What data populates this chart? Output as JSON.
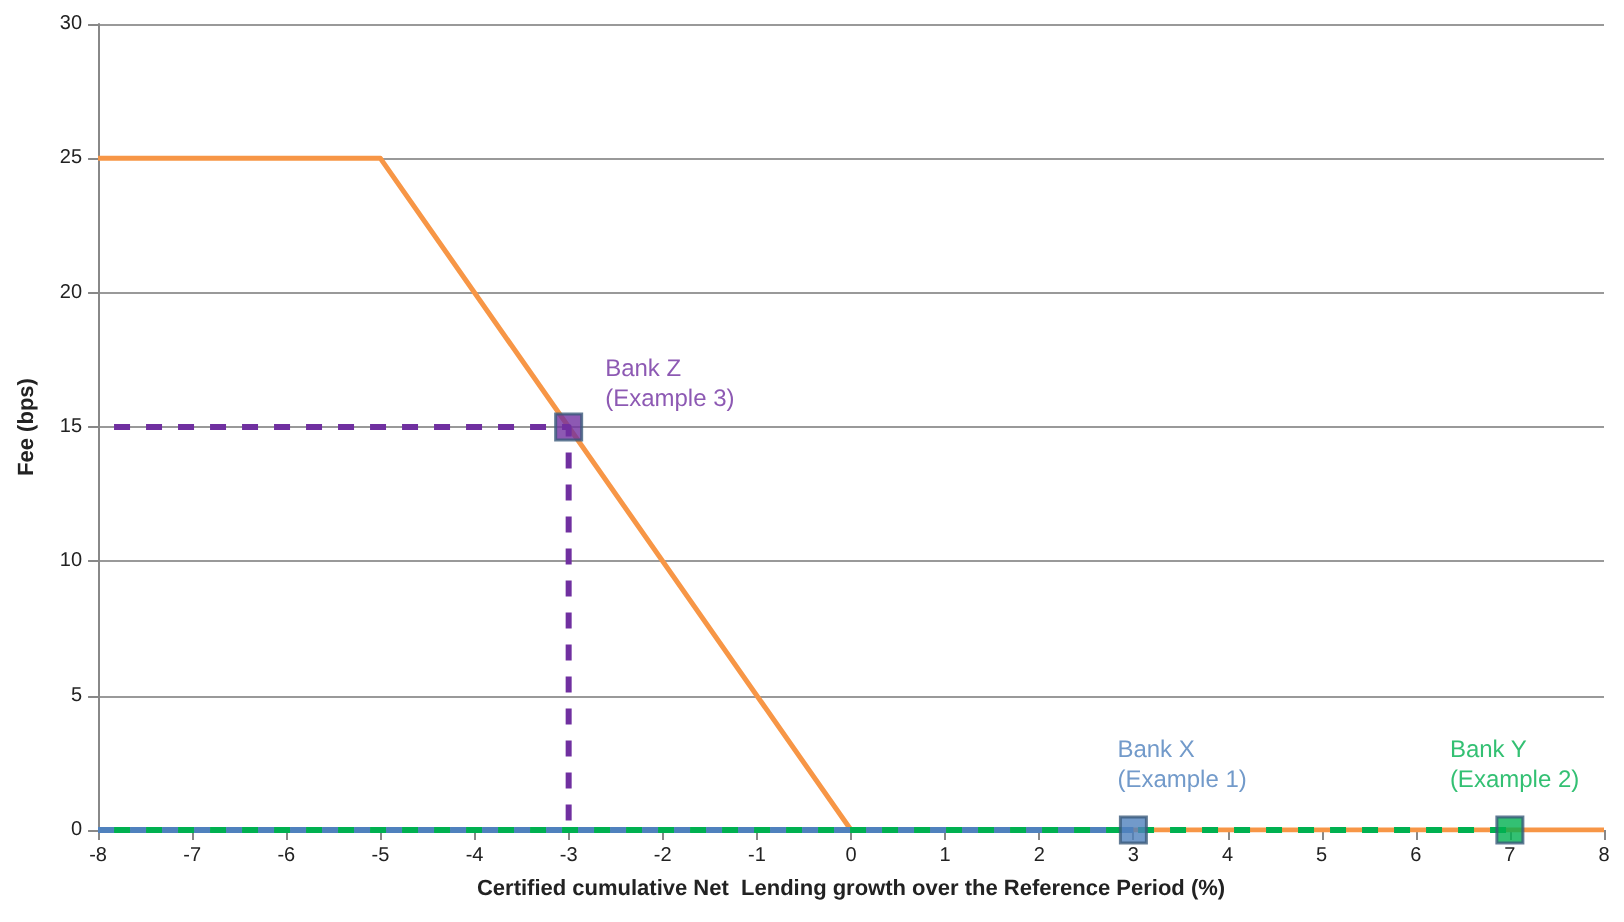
{
  "chart_data": {
    "type": "line",
    "xlabel": "Certified cumulative Net  Lending growth over the Reference Period (%)",
    "ylabel": "Fee (bps)",
    "xlim": [
      -8,
      8
    ],
    "xticks": [
      -8,
      -7,
      -6,
      -5,
      -4,
      -3,
      -2,
      -1,
      0,
      1,
      2,
      3,
      4,
      5,
      6,
      7,
      8
    ],
    "ylim": [
      0,
      30
    ],
    "yticks": [
      0,
      5,
      10,
      15,
      20,
      25,
      30
    ],
    "grid": "y",
    "series": [
      {
        "color": "#f79646",
        "line_style": "solid",
        "marker": "none",
        "x": [
          -8,
          -5,
          0,
          8
        ],
        "values": [
          25,
          25,
          0,
          0
        ]
      },
      {
        "color": "#7030a0",
        "line_style": "dashed",
        "marker": "none",
        "x": [
          -8,
          -3,
          -3
        ],
        "values": [
          15,
          15,
          0
        ]
      },
      {
        "color": "#4f81bd",
        "line_style": "dashed",
        "marker": "none",
        "x": [
          -8,
          3
        ],
        "values": [
          0,
          0
        ]
      },
      {
        "color": "#00b050",
        "line_style": "dashed",
        "marker": "none",
        "x": [
          -8,
          7
        ],
        "values": [
          0,
          0
        ]
      },
      {
        "type": "scatter",
        "name": "Bank X\n(Example 1)",
        "color": "#4f81bd",
        "marker": "square",
        "x": [
          3
        ],
        "values": [
          0
        ]
      },
      {
        "type": "scatter",
        "name": "Bank Y\n(Example 2)",
        "color": "#00b050",
        "marker": "square",
        "x": [
          7
        ],
        "values": [
          0
        ]
      },
      {
        "type": "scatter",
        "name": "Bank Z\n(Example 3)",
        "color": "#7030a0",
        "marker": "square",
        "x": [
          -3
        ],
        "values": [
          15
        ]
      }
    ]
  }
}
